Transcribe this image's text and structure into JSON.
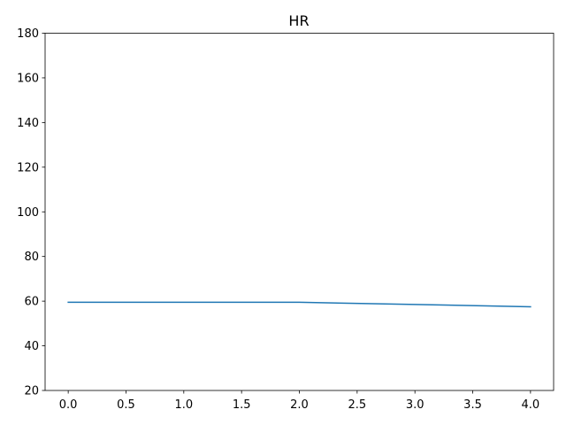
{
  "chart_data": {
    "type": "line",
    "title": "HR",
    "xlabel": "",
    "ylabel": "",
    "xlim": [
      -0.2,
      4.2
    ],
    "ylim": [
      20,
      180
    ],
    "x_ticks": [
      0.0,
      0.5,
      1.0,
      1.5,
      2.0,
      2.5,
      3.0,
      3.5,
      4.0
    ],
    "x_tick_labels": [
      "0.0",
      "0.5",
      "1.0",
      "1.5",
      "2.0",
      "2.5",
      "3.0",
      "3.5",
      "4.0"
    ],
    "y_ticks": [
      20,
      40,
      60,
      80,
      100,
      120,
      140,
      160,
      180
    ],
    "y_tick_labels": [
      "20",
      "40",
      "60",
      "80",
      "100",
      "120",
      "140",
      "160",
      "180"
    ],
    "grid": false,
    "legend": "none",
    "series": [
      {
        "color": "#1f77b4",
        "x": [
          0,
          1,
          2,
          3,
          4
        ],
        "y": [
          59.5,
          59.5,
          59.5,
          58.5,
          57.5
        ]
      }
    ]
  }
}
